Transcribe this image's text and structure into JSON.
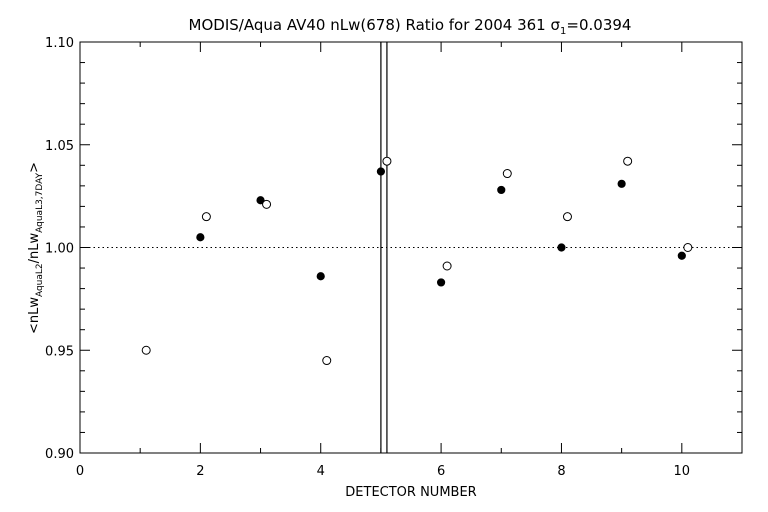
{
  "chart_data": {
    "type": "scatter",
    "title": {
      "prefix": "MODIS/Aqua AV40 nLw(678) Ratio for 2004 361 ",
      "sigma": "σ",
      "sigma_sub": "1",
      "suffix": "=0.0394"
    },
    "xlabel": "DETECTOR NUMBER",
    "ylabel": {
      "a": "<nLw",
      "a_sub": "AquaL2",
      "b": "/nLw",
      "b_sub": "AquaL3,7DAY",
      "c": ">"
    },
    "xlim": [
      0,
      11
    ],
    "ylim": [
      0.9,
      1.1
    ],
    "xticks": [
      0,
      2,
      4,
      6,
      8,
      10
    ],
    "xtick_labels": [
      "0",
      "2",
      "4",
      "6",
      "8",
      "10"
    ],
    "yticks": [
      0.9,
      0.95,
      1.0,
      1.05,
      1.1
    ],
    "ytick_labels": [
      "0.90",
      "0.95",
      "1.00",
      "1.05",
      "1.10"
    ],
    "reference_line": 1.0,
    "vertical_lines": [
      5.0,
      5.1
    ],
    "series": [
      {
        "marker": "filled-circle",
        "x": [
          2,
          3,
          4,
          5,
          6,
          7,
          8,
          9,
          10
        ],
        "y": [
          1.005,
          1.023,
          0.986,
          1.037,
          0.983,
          1.028,
          1.0,
          1.031,
          0.996
        ]
      },
      {
        "marker": "open-circle",
        "x": [
          1.1,
          2.1,
          3.1,
          4.1,
          5.1,
          6.1,
          7.1,
          8.1,
          9.1,
          10.1
        ],
        "y": [
          0.95,
          1.015,
          1.021,
          0.945,
          1.042,
          0.991,
          1.036,
          1.015,
          1.042,
          1.0
        ]
      }
    ]
  }
}
